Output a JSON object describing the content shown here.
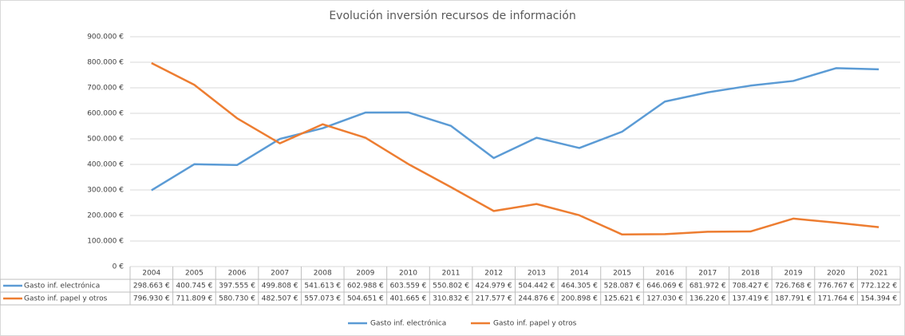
{
  "chart_data": {
    "type": "line",
    "title": "Evolución inversión recursos de información",
    "categories": [
      "2004",
      "2005",
      "2006",
      "2007",
      "2008",
      "2009",
      "2010",
      "2011",
      "2012",
      "2013",
      "2014",
      "2015",
      "2016",
      "2017",
      "2018",
      "2019",
      "2020",
      "2021"
    ],
    "series": [
      {
        "name": "Gasto inf. electrónica",
        "color": "#5b9bd5",
        "values": [
          298663,
          400745,
          397555,
          499808,
          541613,
          602988,
          603559,
          550802,
          424979,
          504442,
          464305,
          528087,
          646069,
          681972,
          708427,
          726768,
          776767,
          772122
        ],
        "value_labels": [
          "298.663 €",
          "400.745 €",
          "397.555 €",
          "499.808 €",
          "541.613 €",
          "602.988 €",
          "603.559 €",
          "550.802 €",
          "424.979 €",
          "504.442 €",
          "464.305 €",
          "528.087 €",
          "646.069 €",
          "681.972 €",
          "708.427 €",
          "726.768 €",
          "776.767 €",
          "772.122 €"
        ]
      },
      {
        "name": "Gasto inf. papel y otros",
        "color": "#ed7d31",
        "values": [
          796930,
          711809,
          580730,
          482507,
          557073,
          504651,
          401665,
          310832,
          217577,
          244876,
          200898,
          125621,
          127030,
          136220,
          137419,
          187791,
          171764,
          154394
        ],
        "value_labels": [
          "796.930 €",
          "711.809 €",
          "580.730 €",
          "482.507 €",
          "557.073 €",
          "504.651 €",
          "401.665 €",
          "310.832 €",
          "217.577 €",
          "244.876 €",
          "200.898 €",
          "125.621 €",
          "127.030 €",
          "136.220 €",
          "137.419 €",
          "187.791 €",
          "171.764 €",
          "154.394 €"
        ]
      }
    ],
    "ylim": [
      0,
      900000
    ],
    "yticks": [
      {
        "value": 0,
        "label": "0 €"
      },
      {
        "value": 100000,
        "label": "100.000 €"
      },
      {
        "value": 200000,
        "label": "200.000 €"
      },
      {
        "value": 300000,
        "label": "300.000 €"
      },
      {
        "value": 400000,
        "label": "400.000 €"
      },
      {
        "value": 500000,
        "label": "500.000 €"
      },
      {
        "value": 600000,
        "label": "600.000 €"
      },
      {
        "value": 700000,
        "label": "700.000 €"
      },
      {
        "value": 800000,
        "label": "800.000 €"
      },
      {
        "value": 900000,
        "label": "900.000 €"
      }
    ],
    "grid": true,
    "legend": "bottom"
  }
}
